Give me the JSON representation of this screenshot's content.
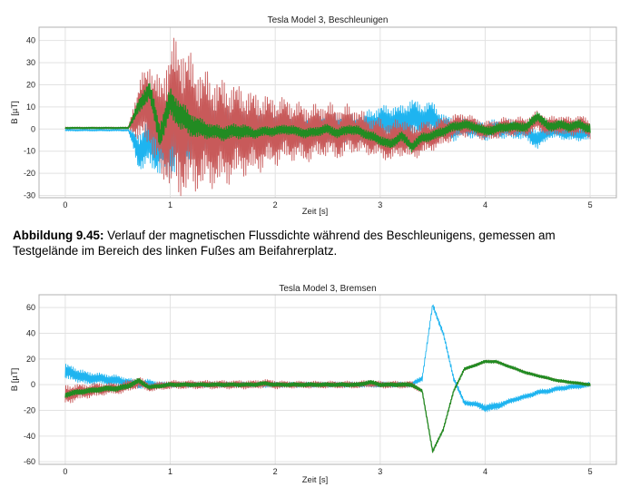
{
  "caption": {
    "label": "Abbildung 9.45:",
    "text": " Verlauf der magnetischen Flussdichte während des Beschleunigens, gemessen am Testgelände im Bereich des linken Fußes am Beifahrerplatz."
  },
  "colors": {
    "blue": "#1eb4f0",
    "red": "#c85a5a",
    "green": "#228b22",
    "grid": "#e2e2e2",
    "frame": "#b0b0b0"
  },
  "chart_data": [
    {
      "type": "line",
      "title": "Tesla Model 3, Beschleunigen",
      "xlabel": "Zeit [s]",
      "ylabel": "B [µT]",
      "xlim": [
        -0.25,
        5.25
      ],
      "ylim": [
        -31,
        46
      ],
      "xticks": [
        0,
        1,
        2,
        3,
        4,
        5
      ],
      "yticks": [
        -30,
        -20,
        -10,
        0,
        10,
        20,
        30,
        40
      ],
      "grid": true,
      "x_step": 0.1,
      "series": [
        {
          "name": "blue",
          "color": "#1eb4f0",
          "center": [
            -0.5,
            -0.5,
            -0.5,
            -0.5,
            -0.5,
            -0.5,
            -0.5,
            -10,
            -6,
            -8,
            -5,
            -3,
            -2,
            -1,
            0,
            0,
            -1,
            -1,
            -1,
            0,
            0,
            0,
            -1,
            -1,
            0,
            0,
            0,
            0,
            0,
            1,
            3,
            3,
            3,
            5,
            4,
            5,
            1,
            0,
            1,
            0,
            -1,
            0,
            0,
            0,
            -1,
            -5,
            -1,
            -1,
            -2,
            -2,
            -2
          ],
          "spread": [
            0.4,
            0.4,
            0.4,
            0.4,
            0.4,
            0.4,
            0.4,
            8,
            10,
            12,
            16,
            14,
            12,
            10,
            9,
            9,
            8,
            8,
            7,
            7,
            6,
            6,
            6,
            6,
            6,
            6,
            6,
            6,
            6,
            7,
            7,
            7,
            7,
            8,
            7,
            7,
            5,
            5,
            4,
            4,
            4,
            4,
            4,
            4,
            4,
            4,
            3,
            3,
            3,
            3,
            3
          ]
        },
        {
          "name": "red",
          "color": "#c85a5a",
          "center": [
            0.5,
            0.5,
            0.5,
            0.5,
            0.5,
            0.5,
            0.5,
            8,
            12,
            0,
            6,
            5,
            2,
            0,
            -1,
            -2,
            -1,
            -1,
            -2,
            -1,
            -1,
            0,
            -1,
            -2,
            -1,
            0,
            -2,
            0,
            -1,
            -3,
            -4,
            -6,
            -3,
            -6,
            -4,
            -3,
            -1,
            1,
            2,
            1,
            -1,
            0,
            1,
            1,
            1,
            4,
            1,
            2,
            1,
            2,
            0
          ],
          "spread": [
            0.4,
            0.4,
            0.4,
            0.4,
            0.4,
            0.4,
            0.4,
            12,
            18,
            20,
            30,
            33,
            28,
            25,
            23,
            22,
            20,
            18,
            17,
            15,
            14,
            13,
            12,
            12,
            11,
            11,
            11,
            10,
            9,
            8,
            8,
            8,
            8,
            7,
            7,
            6,
            6,
            5,
            5,
            4,
            4,
            4,
            4,
            4,
            4,
            4,
            4,
            4,
            4,
            4,
            4
          ]
        },
        {
          "name": "green",
          "color": "#228b22",
          "center": [
            0.5,
            0.5,
            0.5,
            0.5,
            0.5,
            0.5,
            0.5,
            10,
            18,
            -3,
            12,
            6,
            2,
            0,
            -1,
            -2,
            -1,
            -1,
            -2,
            -1,
            -1,
            0,
            -1,
            -2,
            -1,
            0,
            -2,
            0,
            -1,
            -3,
            -5,
            -7,
            -3,
            -8,
            -4,
            -3,
            -1,
            1,
            2,
            1,
            -1,
            0,
            1,
            1,
            1,
            6,
            1,
            2,
            1,
            2,
            0
          ],
          "spread": [
            0.3,
            0.3,
            0.3,
            0.3,
            0.3,
            0.3,
            0.3,
            3,
            4,
            5,
            6,
            6,
            5,
            4,
            3,
            3,
            3,
            3,
            2,
            2,
            2,
            2,
            2,
            2,
            2,
            2,
            2,
            2,
            2,
            2,
            2,
            2,
            2,
            2,
            2,
            2,
            2,
            2,
            2,
            2,
            2,
            2,
            2,
            2,
            2,
            2,
            2,
            2,
            2,
            2,
            2
          ]
        }
      ]
    },
    {
      "type": "line",
      "title": "Tesla Model 3, Bremsen",
      "xlabel": "Zeit [s]",
      "ylabel": "B [µT]",
      "xlim": [
        -0.25,
        5.25
      ],
      "ylim": [
        -62,
        70
      ],
      "xticks": [
        0,
        1,
        2,
        3,
        4,
        5
      ],
      "yticks": [
        -60,
        -40,
        -20,
        0,
        20,
        40,
        60
      ],
      "grid": true,
      "x_step": 0.1,
      "series": [
        {
          "name": "blue",
          "color": "#1eb4f0",
          "center": [
            10,
            8,
            5,
            5,
            4,
            3,
            2,
            0,
            1,
            0,
            0,
            0,
            0,
            0,
            0,
            0,
            0,
            0,
            0,
            0,
            0,
            0,
            0,
            0,
            0,
            0,
            0,
            0,
            0,
            0,
            0,
            0,
            0,
            0,
            5,
            62,
            40,
            5,
            -14,
            -15,
            -18,
            -17,
            -14,
            -11,
            -9,
            -6,
            -5,
            -3,
            -2,
            -1,
            0
          ],
          "spread": [
            6,
            5,
            5,
            4,
            4,
            4,
            3,
            3,
            3,
            2,
            2,
            2,
            2,
            2,
            2,
            2,
            2,
            2,
            2,
            2,
            2,
            2,
            2,
            2,
            2,
            2,
            2,
            2,
            2,
            2,
            2,
            2,
            2,
            2,
            2,
            2,
            2,
            2,
            2,
            2,
            3,
            3,
            2,
            2,
            2,
            2,
            2,
            2,
            2,
            2,
            2
          ]
        },
        {
          "name": "red",
          "color": "#c85a5a",
          "center": [
            -8,
            -6,
            -5,
            -4,
            -3,
            -3,
            -1,
            2,
            -2,
            -1,
            0,
            0,
            0,
            0,
            0,
            0,
            0,
            0,
            0,
            1,
            0,
            0,
            0,
            0,
            0,
            0,
            0,
            0,
            0,
            1,
            0,
            0,
            0,
            0,
            -5,
            -52,
            -35,
            -5,
            12,
            15,
            18,
            18,
            15,
            12,
            9,
            7,
            5,
            3,
            2,
            1,
            0
          ],
          "spread": [
            7,
            6,
            5,
            5,
            4,
            4,
            4,
            4,
            3,
            3,
            3,
            3,
            3,
            3,
            3,
            3,
            3,
            3,
            3,
            3,
            3,
            2.5,
            2.5,
            2.5,
            2.5,
            2.5,
            2.5,
            2.5,
            2.5,
            2.5,
            2.5,
            2.5,
            2.5,
            2.5,
            1,
            1,
            1,
            1,
            1,
            1,
            1,
            1,
            1,
            1,
            1,
            1,
            1,
            1,
            1,
            1,
            1
          ]
        },
        {
          "name": "green",
          "color": "#228b22",
          "center": [
            -8,
            -6,
            -5,
            -4,
            -3,
            -3,
            -1,
            3,
            -2,
            -1,
            0,
            0,
            0,
            0,
            0,
            0,
            0,
            0,
            0,
            1,
            0,
            0,
            0,
            0,
            0,
            0,
            0,
            0,
            0,
            2,
            0,
            0,
            0,
            0,
            -5,
            -52,
            -35,
            -5,
            12,
            15,
            18,
            18,
            15,
            12,
            9,
            7,
            5,
            3,
            2,
            1,
            0
          ],
          "spread": [
            2,
            2,
            2,
            2,
            2,
            2,
            2,
            2,
            1.5,
            1.5,
            1.5,
            1.5,
            1.5,
            1.5,
            1.5,
            1.5,
            1.5,
            1.5,
            1.5,
            1.5,
            1.5,
            1.5,
            1.5,
            1.5,
            1.5,
            1.5,
            1.5,
            1.5,
            1.5,
            1.5,
            1.5,
            1.5,
            1.5,
            1.5,
            1,
            1,
            1,
            1,
            1,
            1,
            1,
            1,
            1,
            1,
            1,
            1,
            1,
            1,
            1,
            1,
            1
          ]
        }
      ]
    }
  ]
}
